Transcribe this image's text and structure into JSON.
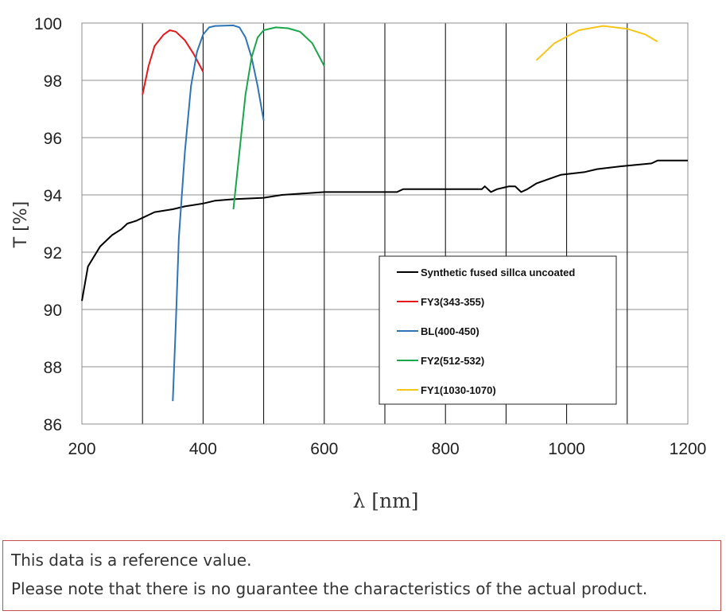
{
  "chart_data": {
    "type": "line",
    "title": "",
    "xlabel": "λ [nm]",
    "ylabel": "T [%]",
    "xlim": [
      200,
      1200
    ],
    "ylim": [
      86,
      100
    ],
    "xticks": [
      200,
      400,
      600,
      800,
      1000,
      1200
    ],
    "yticks": [
      86,
      88,
      90,
      92,
      94,
      96,
      98,
      100
    ],
    "grid": true,
    "legend_position": "bottom-center",
    "series": [
      {
        "name": "Synthetic fused sillca uncoated",
        "color": "#000000",
        "x": [
          200,
          210,
          230,
          250,
          265,
          275,
          290,
          300,
          320,
          350,
          370,
          400,
          420,
          450,
          500,
          530,
          600,
          720,
          730,
          860,
          865,
          875,
          885,
          905,
          915,
          925,
          935,
          950,
          970,
          990,
          1030,
          1050,
          1090,
          1140,
          1150,
          1200
        ],
        "y": [
          90.3,
          91.5,
          92.2,
          92.6,
          92.8,
          93.0,
          93.1,
          93.2,
          93.4,
          93.5,
          93.6,
          93.7,
          93.8,
          93.85,
          93.9,
          94.0,
          94.1,
          94.1,
          94.2,
          94.2,
          94.3,
          94.1,
          94.2,
          94.3,
          94.3,
          94.1,
          94.2,
          94.4,
          94.55,
          94.7,
          94.8,
          94.9,
          95.0,
          95.1,
          95.2,
          95.2
        ]
      },
      {
        "name": "FY3(343-355)",
        "color": "#e31a1c",
        "x": [
          300,
          310,
          320,
          335,
          345,
          355,
          370,
          385,
          400
        ],
        "y": [
          97.5,
          98.5,
          99.2,
          99.6,
          99.75,
          99.7,
          99.4,
          98.9,
          98.3
        ]
      },
      {
        "name": "BL(400-450)",
        "color": "#2e75b6",
        "x": [
          350,
          355,
          360,
          370,
          380,
          390,
          400,
          410,
          420,
          450,
          460,
          470,
          480,
          490,
          500
        ],
        "y": [
          86.8,
          89.5,
          92.5,
          95.5,
          97.8,
          99.0,
          99.6,
          99.85,
          99.9,
          99.92,
          99.85,
          99.5,
          98.8,
          97.8,
          96.6
        ]
      },
      {
        "name": "FY2(512-532)",
        "color": "#1aa64b",
        "x": [
          450,
          460,
          470,
          480,
          490,
          500,
          520,
          540,
          560,
          580,
          600
        ],
        "y": [
          93.5,
          95.5,
          97.5,
          98.8,
          99.5,
          99.75,
          99.85,
          99.82,
          99.7,
          99.3,
          98.5
        ]
      },
      {
        "name": "FY1(1030-1070)",
        "color": "#f5c518",
        "x": [
          950,
          980,
          1020,
          1060,
          1100,
          1130,
          1150
        ],
        "y": [
          98.7,
          99.3,
          99.75,
          99.9,
          99.8,
          99.6,
          99.35
        ]
      }
    ]
  },
  "note": {
    "line1": "This data is a reference value.",
    "line2": "Please note that there is no guarantee the characteristics of the actual product."
  }
}
